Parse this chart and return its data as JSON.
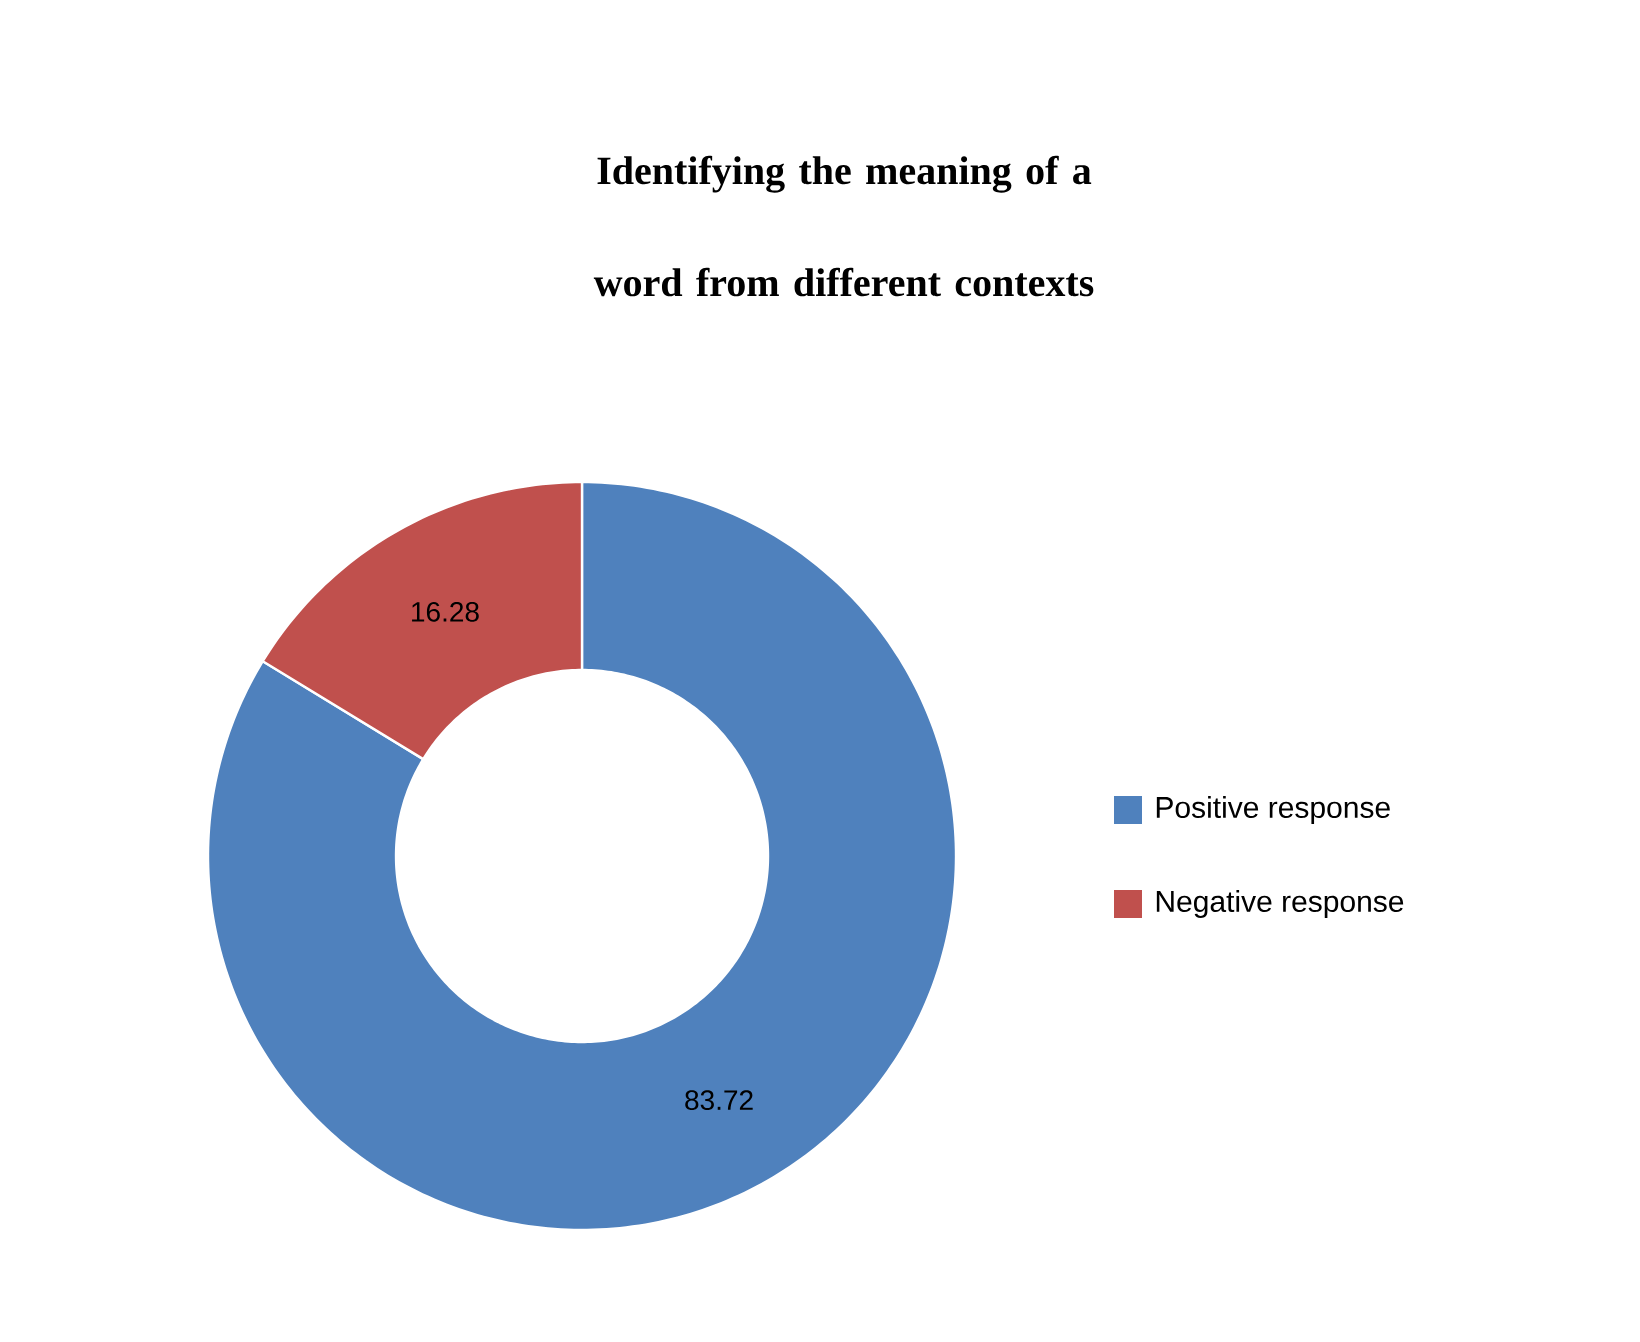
{
  "chart_data": {
    "type": "donut",
    "title": "Identifying the meaning of a word from different contexts",
    "categories": [
      "Positive response",
      "Negative response"
    ],
    "values": [
      83.72,
      16.28
    ],
    "colors": [
      "#4f81bd",
      "#c0504d"
    ],
    "data_labels": true,
    "legend": "right"
  }
}
